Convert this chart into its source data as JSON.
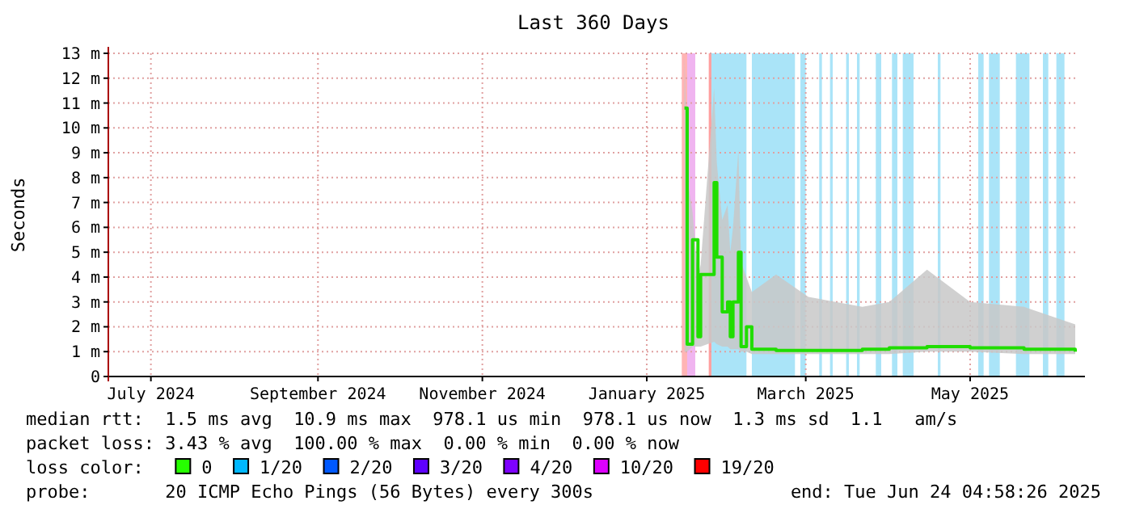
{
  "chart_data": {
    "type": "line",
    "title": "Last 360 Days",
    "ylabel": "Seconds",
    "legend_title": "loss color:",
    "legend": "bottom left",
    "grid": true,
    "xlim": [
      "2024-06-29T05:00",
      "2025-06-24T05:00"
    ],
    "xticks": [
      {
        "value": "2024-07-15",
        "label": "July 2024"
      },
      {
        "value": "2024-09-15",
        "label": "September 2024"
      },
      {
        "value": "2024-11-15",
        "label": "November 2024"
      },
      {
        "value": "2025-01-15",
        "label": "January 2025"
      },
      {
        "value": "2025-03-15",
        "label": "March 2025"
      },
      {
        "value": "2025-05-15",
        "label": "May 2025"
      }
    ],
    "ylim": [
      0,
      13
    ],
    "yticks": [
      0,
      {
        "value": 1,
        "label": "1 m"
      },
      {
        "value": 2,
        "label": "2 m"
      },
      {
        "value": 3,
        "label": "3 m"
      },
      {
        "value": 4,
        "label": "4 m"
      },
      {
        "value": 5,
        "label": "5 m"
      },
      {
        "value": 6,
        "label": "6 m"
      },
      {
        "value": 7,
        "label": "7 m"
      },
      {
        "value": 8,
        "label": "8 m"
      },
      {
        "value": 9,
        "label": "9 m"
      },
      {
        "value": 10,
        "label": "10 m"
      },
      {
        "value": 11,
        "label": "11 m"
      },
      {
        "value": 12,
        "label": "12 m"
      },
      {
        "value": 13,
        "label": "13 m"
      }
    ],
    "series": [
      {
        "color": "#20dd00",
        "x": [
          "2025-01-29",
          "2025-01-30",
          "2025-02-01",
          "2025-02-03",
          "2025-02-04",
          "2025-02-09",
          "2025-02-10",
          "2025-02-12",
          "2025-02-14",
          "2025-02-15",
          "2025-02-16",
          "2025-02-18",
          "2025-02-19",
          "2025-02-21",
          "2025-02-23",
          "2025-03-04",
          "2025-03-16",
          "2025-04-05",
          "2025-04-15",
          "2025-04-29",
          "2025-05-15",
          "2025-06-04",
          "2025-06-23"
        ],
        "values": [
          10.8,
          1.3,
          5.5,
          1.6,
          4.1,
          7.8,
          4.8,
          2.6,
          3.0,
          1.6,
          3.0,
          5.0,
          1.2,
          2.0,
          1.1,
          1.05,
          1.05,
          1.1,
          1.15,
          1.2,
          1.15,
          1.1,
          1.0
        ],
        "lower": [
          1.0,
          1.0,
          1.2,
          1.2,
          1.2,
          1.4,
          1.3,
          1.2,
          1.2,
          1.1,
          1.1,
          1.1,
          1.0,
          1.0,
          0.9,
          0.9,
          0.9,
          0.9,
          0.9,
          1.0,
          1.0,
          0.9,
          0.9
        ],
        "upper": [
          13.0,
          8.0,
          6.6,
          4.0,
          4.5,
          11.6,
          8.6,
          6.3,
          6.9,
          5.0,
          6.0,
          9.1,
          4.6,
          4.0,
          3.4,
          4.1,
          3.2,
          2.8,
          3.0,
          4.3,
          3.0,
          2.8,
          2.1
        ]
      },
      {
        "name": "0",
        "color": "#26ff00"
      },
      {
        "name": "1/20",
        "color": "#00b8ff"
      },
      {
        "name": "2/20",
        "color": "#0059ff"
      },
      {
        "name": "3/20",
        "color": "#5e00ff"
      },
      {
        "name": "4/20",
        "color": "#7e00ff"
      },
      {
        "name": "10/20",
        "color": "#dd00ff"
      },
      {
        "name": "19/20",
        "color": "#ff0000"
      }
    ],
    "bands": [
      {
        "axis": "x",
        "from": "2025-01-28",
        "to": "2025-01-30",
        "color": "#ffb4b4"
      },
      {
        "axis": "x",
        "from": "2025-01-30",
        "to": "2025-02-02",
        "color": "#f0b4f0"
      },
      {
        "axis": "x",
        "from": "2025-02-07",
        "to": "2025-02-08",
        "color": "#ffa0a0"
      },
      {
        "axis": "x",
        "from": "2025-02-08",
        "to": "2025-02-21",
        "color": "#aae4f8"
      },
      {
        "axis": "x",
        "from": "2025-02-23",
        "to": "2025-03-11",
        "color": "#aae4f8"
      },
      {
        "axis": "x",
        "from": "2025-03-13",
        "to": "2025-03-15",
        "color": "#aae4f8"
      },
      {
        "axis": "x",
        "from": "2025-03-20",
        "to": "2025-03-21",
        "color": "#aae4f8"
      },
      {
        "axis": "x",
        "from": "2025-03-24",
        "to": "2025-03-25",
        "color": "#aae4f8"
      },
      {
        "axis": "x",
        "from": "2025-03-30",
        "to": "2025-03-31",
        "color": "#aae4f8"
      },
      {
        "axis": "x",
        "from": "2025-04-03",
        "to": "2025-04-04",
        "color": "#aae4f8"
      },
      {
        "axis": "x",
        "from": "2025-04-10",
        "to": "2025-04-12",
        "color": "#aae4f8"
      },
      {
        "axis": "x",
        "from": "2025-04-16",
        "to": "2025-04-18",
        "color": "#aae4f8"
      },
      {
        "axis": "x",
        "from": "2025-04-20",
        "to": "2025-04-24",
        "color": "#aae4f8"
      },
      {
        "axis": "x",
        "from": "2025-05-03",
        "to": "2025-05-04",
        "color": "#aae4f8"
      },
      {
        "axis": "x",
        "from": "2025-05-18",
        "to": "2025-05-20",
        "color": "#aae4f8"
      },
      {
        "axis": "x",
        "from": "2025-05-22",
        "to": "2025-05-26",
        "color": "#aae4f8"
      },
      {
        "axis": "x",
        "from": "2025-06-01",
        "to": "2025-06-06",
        "color": "#aae4f8"
      },
      {
        "axis": "x",
        "from": "2025-06-11",
        "to": "2025-06-13",
        "color": "#aae4f8"
      },
      {
        "axis": "x",
        "from": "2025-06-16",
        "to": "2025-06-19",
        "color": "#aae4f8"
      }
    ],
    "annotations": [
      "median rtt:  1.5 ms avg  10.9 ms max  978.1 us min  978.1 us now  1.3 ms sd  1.1   am/s",
      "packet loss: 3.43 % avg  100.00 % max  0.00 % min  0.00 % now",
      "probe:       20 ICMP Echo Pings (56 Bytes) every 300s",
      "end: Tue Jun 24 04:58:26 2025"
    ]
  }
}
